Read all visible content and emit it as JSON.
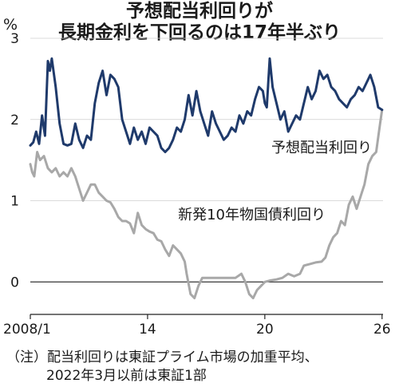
{
  "title_line1": "予想配当利回りが",
  "title_line2": "長期金利を下回るのは17年半ぶり",
  "y_unit": "%",
  "note_line1": "（注）配当利回りは東証プライム市場の加重平均、",
  "note_line2": "2022年3月以前は東証1部",
  "colors": {
    "dividend": "#1f3a6b",
    "bond": "#a8a8a8",
    "axis": "#222222",
    "grid": "#cfcfcf"
  },
  "chart_data": {
    "type": "line",
    "title": "予想配当利回りが 長期金利を下回るのは17年半ぶり",
    "ylabel": "%",
    "xlim": [
      2008.0,
      2026.05
    ],
    "ylim": [
      -0.4,
      3.0
    ],
    "y_ticks": [
      0,
      1,
      2,
      3
    ],
    "y_tick_labels": [
      "0",
      "1",
      "2",
      "3"
    ],
    "x_ticks": [
      2008,
      2014,
      2020,
      2026
    ],
    "x_tick_labels": [
      "2008/1",
      "14",
      "20",
      "26"
    ],
    "series": [
      {
        "name": "予想配当利回り",
        "x": [
          2008.0,
          2008.15,
          2008.3,
          2008.45,
          2008.6,
          2008.75,
          2008.9,
          2009.0,
          2009.1,
          2009.3,
          2009.5,
          2009.7,
          2009.9,
          2010.1,
          2010.3,
          2010.5,
          2010.7,
          2010.9,
          2011.1,
          2011.3,
          2011.5,
          2011.7,
          2011.9,
          2012.1,
          2012.3,
          2012.5,
          2012.7,
          2012.9,
          2013.1,
          2013.3,
          2013.5,
          2013.7,
          2013.9,
          2014.1,
          2014.3,
          2014.5,
          2014.7,
          2014.9,
          2015.1,
          2015.3,
          2015.5,
          2015.7,
          2015.9,
          2016.1,
          2016.3,
          2016.5,
          2016.7,
          2016.9,
          2017.1,
          2017.3,
          2017.5,
          2017.7,
          2017.9,
          2018.1,
          2018.3,
          2018.5,
          2018.7,
          2018.9,
          2019.1,
          2019.3,
          2019.5,
          2019.7,
          2019.9,
          2020.0,
          2020.1,
          2020.25,
          2020.4,
          2020.6,
          2020.8,
          2021.0,
          2021.2,
          2021.4,
          2021.6,
          2021.8,
          2022.0,
          2022.2,
          2022.4,
          2022.6,
          2022.8,
          2023.0,
          2023.2,
          2023.4,
          2023.6,
          2023.8,
          2024.0,
          2024.2,
          2024.4,
          2024.6,
          2024.8,
          2025.0,
          2025.2,
          2025.4,
          2025.6,
          2025.8,
          2026.0
        ],
        "values": [
          1.68,
          1.72,
          1.85,
          1.7,
          2.05,
          1.8,
          2.72,
          2.6,
          2.75,
          2.4,
          1.95,
          1.7,
          1.68,
          1.7,
          1.95,
          1.75,
          1.65,
          1.8,
          1.75,
          2.2,
          2.45,
          2.6,
          2.3,
          2.55,
          2.5,
          2.4,
          2.0,
          1.85,
          1.7,
          1.9,
          1.75,
          1.85,
          1.7,
          1.9,
          1.85,
          1.8,
          1.65,
          1.6,
          1.65,
          1.75,
          1.9,
          1.85,
          2.0,
          2.3,
          2.05,
          2.35,
          2.1,
          1.95,
          1.8,
          2.1,
          1.95,
          1.85,
          1.75,
          1.8,
          1.9,
          1.85,
          2.05,
          1.95,
          2.1,
          2.05,
          2.25,
          2.4,
          2.35,
          2.2,
          2.15,
          2.75,
          2.4,
          2.2,
          2.0,
          2.1,
          1.85,
          1.95,
          2.05,
          2.0,
          2.2,
          2.4,
          2.25,
          2.35,
          2.6,
          2.5,
          2.55,
          2.4,
          2.35,
          2.25,
          2.2,
          2.15,
          2.25,
          2.3,
          2.4,
          2.35,
          2.45,
          2.55,
          2.4,
          2.15,
          2.12
        ]
      },
      {
        "name": "新発10年物国債利回り",
        "x": [
          2008.0,
          2008.1,
          2008.2,
          2008.35,
          2008.5,
          2008.7,
          2008.9,
          2009.1,
          2009.3,
          2009.5,
          2009.7,
          2009.9,
          2010.1,
          2010.3,
          2010.5,
          2010.7,
          2010.9,
          2011.1,
          2011.3,
          2011.5,
          2011.7,
          2011.9,
          2012.1,
          2012.3,
          2012.5,
          2012.7,
          2012.9,
          2013.1,
          2013.3,
          2013.5,
          2013.7,
          2013.9,
          2014.1,
          2014.3,
          2014.5,
          2014.7,
          2014.9,
          2015.1,
          2015.3,
          2015.5,
          2015.7,
          2015.9,
          2016.0,
          2016.2,
          2016.4,
          2016.6,
          2016.8,
          2017.0,
          2017.3,
          2017.6,
          2017.9,
          2018.2,
          2018.5,
          2018.8,
          2019.0,
          2019.2,
          2019.4,
          2019.6,
          2019.8,
          2020.0,
          2020.3,
          2020.6,
          2020.9,
          2021.2,
          2021.5,
          2021.8,
          2022.0,
          2022.3,
          2022.6,
          2022.9,
          2023.1,
          2023.3,
          2023.5,
          2023.7,
          2023.9,
          2024.1,
          2024.3,
          2024.5,
          2024.7,
          2024.9,
          2025.1,
          2025.3,
          2025.5,
          2025.7,
          2025.9,
          2026.0
        ],
        "values": [
          1.45,
          1.35,
          1.3,
          1.6,
          1.5,
          1.55,
          1.4,
          1.35,
          1.4,
          1.3,
          1.35,
          1.3,
          1.4,
          1.3,
          1.15,
          1.0,
          1.1,
          1.2,
          1.2,
          1.1,
          1.05,
          1.0,
          0.98,
          0.9,
          0.8,
          0.75,
          0.75,
          0.72,
          0.6,
          0.85,
          0.7,
          0.65,
          0.62,
          0.6,
          0.52,
          0.5,
          0.4,
          0.32,
          0.45,
          0.4,
          0.35,
          0.25,
          0.1,
          -0.15,
          -0.2,
          -0.05,
          0.05,
          0.05,
          0.05,
          0.05,
          0.05,
          0.05,
          0.05,
          0.1,
          0.0,
          -0.15,
          -0.2,
          -0.1,
          -0.05,
          0.0,
          0.02,
          0.03,
          0.05,
          0.1,
          0.07,
          0.1,
          0.2,
          0.22,
          0.24,
          0.25,
          0.3,
          0.45,
          0.55,
          0.6,
          0.75,
          0.7,
          0.95,
          1.05,
          0.9,
          1.05,
          1.2,
          1.45,
          1.55,
          1.6,
          1.95,
          2.12
        ]
      }
    ]
  }
}
